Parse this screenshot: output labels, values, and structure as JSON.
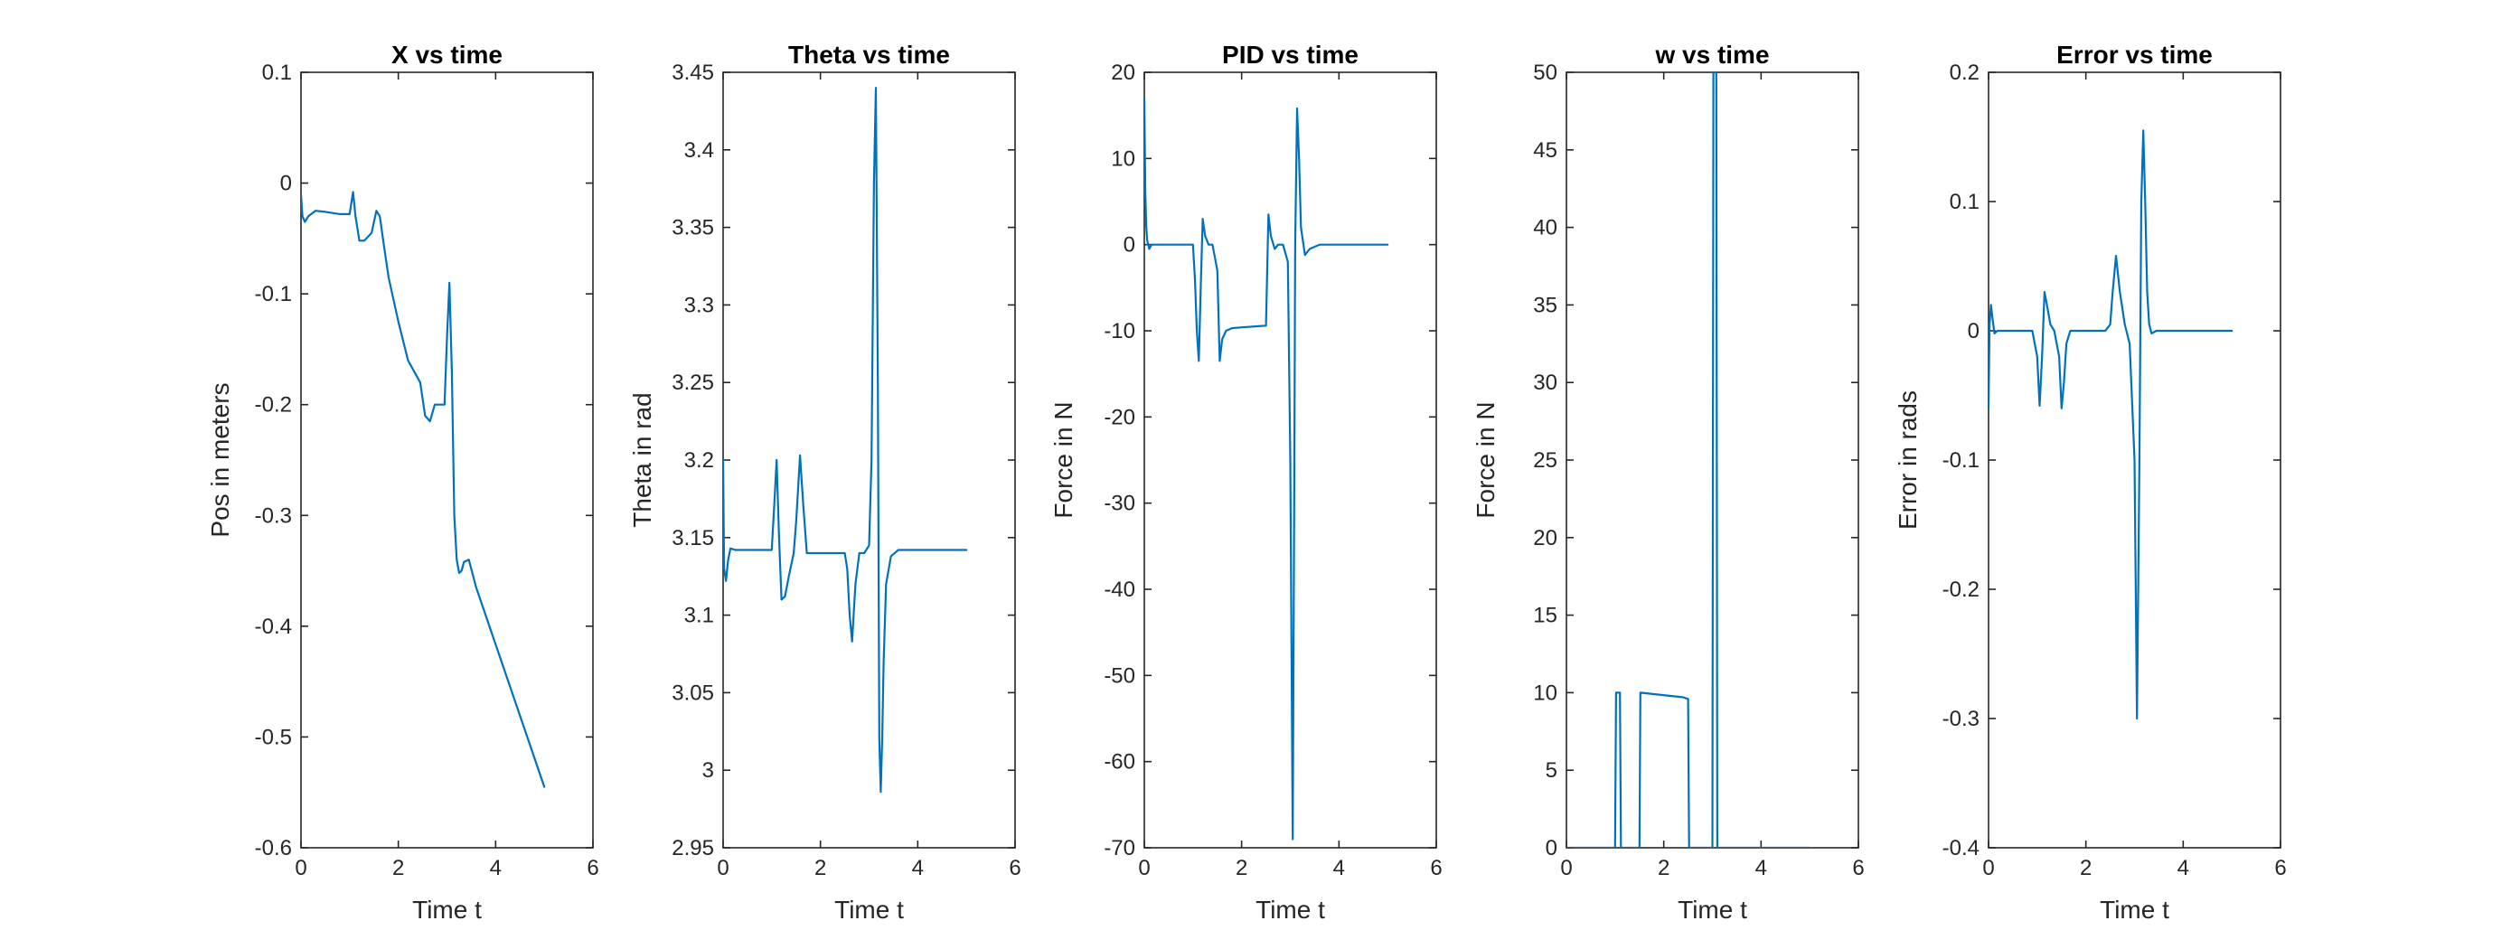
{
  "colors": {
    "series": "#0072BD",
    "axis": "#262626",
    "background": "#ffffff"
  },
  "chart_data": [
    {
      "type": "line",
      "title": "X vs time",
      "xlabel": "Time t",
      "ylabel": "Pos in meters",
      "xlim": [
        0,
        6
      ],
      "ylim": [
        -0.6,
        0.1
      ],
      "xticks": [
        0,
        2,
        4,
        6
      ],
      "yticks": [
        -0.6,
        -0.5,
        -0.4,
        -0.3,
        -0.2,
        -0.1,
        0,
        0.1
      ],
      "ytick_labels": [
        "-0.6",
        "-0.5",
        "-0.4",
        "-0.3",
        "-0.2",
        "-0.1",
        "0",
        "0.1"
      ],
      "grid": false,
      "series": [
        {
          "x": [
            0,
            0.03,
            0.08,
            0.15,
            0.3,
            0.5,
            0.8,
            1.0,
            1.07,
            1.12,
            1.2,
            1.3,
            1.45,
            1.55,
            1.62,
            1.7,
            1.8,
            2.0,
            2.2,
            2.45,
            2.55,
            2.65,
            2.75,
            2.85,
            2.95,
            3.0,
            3.05,
            3.1,
            3.15,
            3.2,
            3.25,
            3.3,
            3.35,
            3.45,
            3.6,
            5.0
          ],
          "y": [
            -0.01,
            -0.03,
            -0.035,
            -0.03,
            -0.025,
            -0.026,
            -0.028,
            -0.028,
            -0.008,
            -0.03,
            -0.052,
            -0.052,
            -0.045,
            -0.025,
            -0.03,
            -0.055,
            -0.085,
            -0.125,
            -0.16,
            -0.18,
            -0.21,
            -0.215,
            -0.2,
            -0.2,
            -0.2,
            -0.14,
            -0.09,
            -0.17,
            -0.3,
            -0.34,
            -0.352,
            -0.35,
            -0.342,
            -0.34,
            -0.365,
            -0.545
          ]
        }
      ]
    },
    {
      "type": "line",
      "title": "Theta vs time",
      "xlabel": "Time t",
      "ylabel": "Theta in rad",
      "xlim": [
        0,
        6
      ],
      "ylim": [
        2.95,
        3.45
      ],
      "xticks": [
        0,
        2,
        4,
        6
      ],
      "yticks": [
        2.95,
        3,
        3.05,
        3.1,
        3.15,
        3.2,
        3.25,
        3.3,
        3.35,
        3.4,
        3.45
      ],
      "ytick_labels": [
        "2.95",
        "3",
        "3.05",
        "3.1",
        "3.15",
        "3.2",
        "3.25",
        "3.3",
        "3.35",
        "3.4",
        "3.45"
      ],
      "grid": false,
      "series": [
        {
          "x": [
            0,
            0.02,
            0.06,
            0.1,
            0.15,
            0.25,
            0.4,
            0.6,
            0.9,
            1.0,
            1.05,
            1.1,
            1.15,
            1.2,
            1.27,
            1.35,
            1.45,
            1.5,
            1.58,
            1.65,
            1.72,
            1.8,
            1.9,
            2.1,
            2.5,
            2.55,
            2.6,
            2.65,
            2.72,
            2.8,
            2.9,
            3.0,
            3.05,
            3.1,
            3.14,
            3.18,
            3.21,
            3.24,
            3.27,
            3.3,
            3.35,
            3.45,
            3.6,
            3.8,
            5.0
          ],
          "y": [
            3.2,
            3.13,
            3.122,
            3.135,
            3.143,
            3.142,
            3.142,
            3.142,
            3.142,
            3.142,
            3.17,
            3.2,
            3.15,
            3.11,
            3.112,
            3.125,
            3.14,
            3.16,
            3.203,
            3.17,
            3.14,
            3.14,
            3.14,
            3.14,
            3.14,
            3.13,
            3.1,
            3.083,
            3.12,
            3.14,
            3.14,
            3.145,
            3.2,
            3.38,
            3.44,
            3.25,
            3.02,
            2.986,
            3.02,
            3.07,
            3.12,
            3.138,
            3.142,
            3.142,
            3.142
          ]
        }
      ]
    },
    {
      "type": "line",
      "title": "PID vs time",
      "xlabel": "Time t",
      "ylabel": "Force in N",
      "xlim": [
        0,
        6
      ],
      "ylim": [
        -70,
        20
      ],
      "xticks": [
        0,
        2,
        4,
        6
      ],
      "yticks": [
        -70,
        -60,
        -50,
        -40,
        -30,
        -20,
        -10,
        0,
        10,
        20
      ],
      "ytick_labels": [
        "-70",
        "-60",
        "-50",
        "-40",
        "-30",
        "-20",
        "-10",
        "0",
        "10",
        "20"
      ],
      "grid": false,
      "series": [
        {
          "x": [
            0,
            0.02,
            0.04,
            0.06,
            0.1,
            0.15,
            0.3,
            1.0,
            1.04,
            1.08,
            1.12,
            1.16,
            1.2,
            1.25,
            1.32,
            1.4,
            1.5,
            1.55,
            1.6,
            1.68,
            1.8,
            2.0,
            2.5,
            2.55,
            2.6,
            2.68,
            2.75,
            2.85,
            2.95,
            3.0,
            3.05,
            3.08,
            3.1,
            3.14,
            3.18,
            3.22,
            3.3,
            3.4,
            3.6,
            3.8,
            5.0
          ],
          "y": [
            17,
            6,
            2,
            0.5,
            -0.5,
            0,
            0,
            0,
            -4,
            -10,
            -13.5,
            -5,
            3,
            1,
            0,
            0,
            -3,
            -13.5,
            -11,
            -10,
            -9.7,
            -9.6,
            -9.4,
            3.5,
            1,
            -0.5,
            0,
            0,
            -2,
            -25,
            -69,
            -30,
            0,
            15.8,
            10,
            2,
            -1.2,
            -0.5,
            0,
            0,
            0
          ]
        }
      ]
    },
    {
      "type": "line",
      "title": "w vs time",
      "xlabel": "Time t",
      "ylabel": "Force in N",
      "xlim": [
        0,
        6
      ],
      "ylim": [
        0,
        50
      ],
      "xticks": [
        0,
        2,
        4,
        6
      ],
      "yticks": [
        0,
        5,
        10,
        15,
        20,
        25,
        30,
        35,
        40,
        45,
        50
      ],
      "ytick_labels": [
        "0",
        "5",
        "10",
        "15",
        "20",
        "25",
        "30",
        "35",
        "40",
        "45",
        "50"
      ],
      "grid": false,
      "series": [
        {
          "x": [
            0,
            1.0,
            1.02,
            1.1,
            1.12,
            1.5,
            1.52,
            2.4,
            2.5,
            2.52,
            3.0,
            3.02,
            3.08,
            3.1,
            5.0
          ],
          "y": [
            0,
            0,
            10,
            10,
            0,
            0,
            10,
            9.7,
            9.6,
            0,
            0,
            50,
            50,
            0,
            0
          ]
        }
      ]
    },
    {
      "type": "line",
      "title": "Error vs time",
      "xlabel": "Time t",
      "ylabel": "Error in rads",
      "xlim": [
        0,
        6
      ],
      "ylim": [
        -0.4,
        0.2
      ],
      "xticks": [
        0,
        2,
        4,
        6
      ],
      "yticks": [
        -0.4,
        -0.3,
        -0.2,
        -0.1,
        0,
        0.1,
        0.2
      ],
      "ytick_labels": [
        "-0.4",
        "-0.3",
        "-0.2",
        "-0.1",
        "0",
        "0.1",
        "0.2"
      ],
      "grid": false,
      "series": [
        {
          "x": [
            0,
            0.02,
            0.05,
            0.08,
            0.12,
            0.18,
            0.3,
            0.9,
            1.0,
            1.05,
            1.1,
            1.15,
            1.2,
            1.27,
            1.35,
            1.45,
            1.5,
            1.55,
            1.6,
            1.68,
            1.8,
            2.0,
            2.4,
            2.5,
            2.55,
            2.62,
            2.7,
            2.8,
            2.9,
            3.0,
            3.05,
            3.1,
            3.14,
            3.18,
            3.22,
            3.26,
            3.3,
            3.35,
            3.45,
            3.6,
            5.0
          ],
          "y": [
            -0.06,
            0.005,
            0.02,
            0.01,
            -0.002,
            0,
            0,
            0,
            -0.02,
            -0.058,
            -0.02,
            0.03,
            0.02,
            0.005,
            0,
            -0.02,
            -0.06,
            -0.04,
            -0.01,
            0,
            0,
            0,
            0,
            0.005,
            0.03,
            0.058,
            0.03,
            0.005,
            -0.01,
            -0.1,
            -0.3,
            -0.1,
            0.1,
            0.155,
            0.1,
            0.03,
            0.005,
            -0.002,
            0,
            0,
            0
          ]
        }
      ]
    }
  ]
}
